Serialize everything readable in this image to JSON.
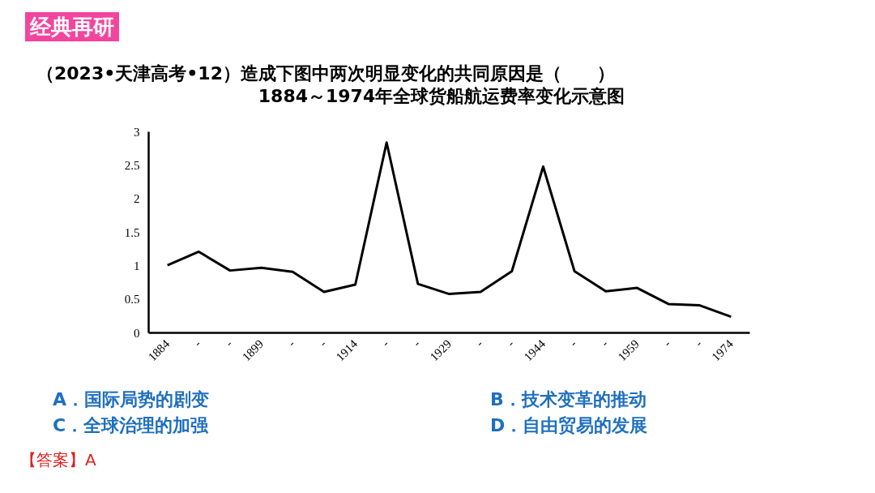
{
  "chart_data": {
    "type": "line",
    "title": "1884～1974年全球货船航运费率变化示意图",
    "x": [
      1884,
      1889,
      1894,
      1899,
      1904,
      1909,
      1914,
      1919,
      1924,
      1929,
      1934,
      1939,
      1944,
      1949,
      1954,
      1959,
      1964,
      1969,
      1974
    ],
    "series": [
      {
        "color": "#000000",
        "values": [
          1.01,
          1.21,
          0.93,
          0.97,
          0.91,
          0.61,
          0.72,
          2.84,
          0.73,
          0.58,
          0.61,
          0.92,
          2.48,
          0.92,
          0.62,
          0.67,
          0.43,
          0.41,
          0.24
        ]
      }
    ],
    "xlim": [
      1881,
      1977
    ],
    "ylim": [
      0,
      3
    ],
    "xticks": [
      1884,
      {
        "value": 1889,
        "label": "-"
      },
      {
        "value": 1894,
        "label": "-"
      },
      1899,
      {
        "value": 1904,
        "label": "-"
      },
      {
        "value": 1909,
        "label": "-"
      },
      1914,
      {
        "value": 1919,
        "label": "-"
      },
      {
        "value": 1924,
        "label": "-"
      },
      1929,
      {
        "value": 1934,
        "label": "-"
      },
      {
        "value": 1939,
        "label": "-"
      },
      1944,
      {
        "value": 1949,
        "label": "-"
      },
      {
        "value": 1954,
        "label": "-"
      },
      1959,
      {
        "value": 1964,
        "label": "-"
      },
      {
        "value": 1969,
        "label": "-"
      },
      1974
    ],
    "yticks": [
      0,
      0.5,
      1,
      1.5,
      2,
      2.5,
      3
    ],
    "grid": false,
    "marker": "none",
    "line_style": "solid",
    "annotations": [
      "经典再研",
      "（2023•天津高考•12）造成下图中两次明显变化的共同原因是（　　）",
      "A．国际局势的剧变",
      "B．技术变革的推动",
      "C．全球治理的加强",
      "D．自由贸易的发展",
      "【答案】A"
    ]
  }
}
